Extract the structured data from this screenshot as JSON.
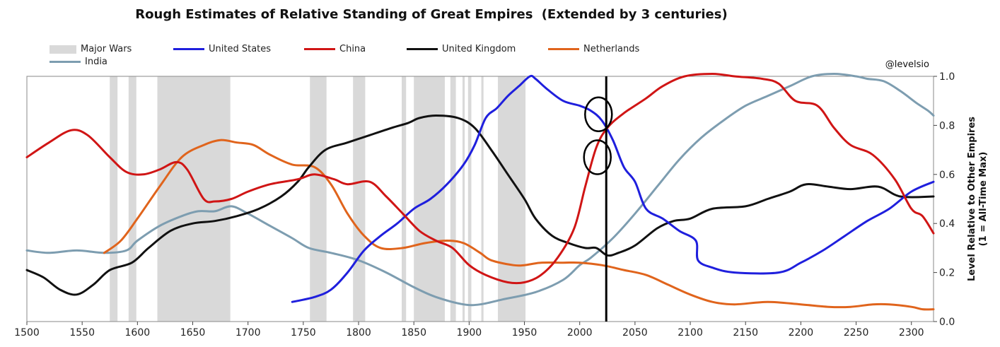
{
  "chart_data": {
    "type": "line",
    "title": "Rough Estimates of Relative Standing of Great Empires",
    "subtitle": "(Extended by 3 centuries)",
    "xlabel": "",
    "ylabel": "Level Relative to Other Empires (1 = All-Time Max)",
    "ylabel_lines": [
      "Level Relative to Other Empires",
      "(1 = All-Time Max)"
    ],
    "credit": "@levelsio",
    "xlim": [
      1500,
      2320
    ],
    "ylim": [
      0,
      1.0
    ],
    "x_ticks": [
      1500,
      1550,
      1600,
      1650,
      1700,
      1750,
      1800,
      1850,
      1900,
      1950,
      2000,
      2050,
      2100,
      2150,
      2200,
      2250,
      2300
    ],
    "y_ticks": [
      {
        "v": 0,
        "label": "0.0"
      },
      {
        "v": 0.2,
        "label": "0.2"
      },
      {
        "v": 0.4,
        "label": "0.4"
      },
      {
        "v": 0.6,
        "label": "0.6"
      },
      {
        "v": 0.8,
        "label": "0.8"
      },
      {
        "v": 1.0,
        "label": "1.0"
      }
    ],
    "legend_position": "top",
    "major_wars_label": "Major Wars",
    "major_wars_color": "#d9d9d9",
    "major_wars": [
      [
        1575,
        1582
      ],
      [
        1592,
        1599
      ],
      [
        1618,
        1684
      ],
      [
        1756,
        1771
      ],
      [
        1795,
        1806
      ],
      [
        1839,
        1843
      ],
      [
        1850,
        1878
      ],
      [
        1883,
        1888
      ],
      [
        1894,
        1896
      ],
      [
        1899,
        1902
      ],
      [
        1911,
        1913
      ],
      [
        1926,
        1951
      ]
    ],
    "present_line_year": 2024,
    "circle_annotations": [
      {
        "x": 2017,
        "y": 0.845
      },
      {
        "x": 2016,
        "y": 0.67
      }
    ],
    "series": [
      {
        "name": "United States",
        "color": "#1f1fdd",
        "points": [
          [
            1740,
            0.08
          ],
          [
            1760,
            0.1
          ],
          [
            1775,
            0.13
          ],
          [
            1790,
            0.2
          ],
          [
            1805,
            0.29
          ],
          [
            1820,
            0.35
          ],
          [
            1835,
            0.4
          ],
          [
            1850,
            0.46
          ],
          [
            1865,
            0.5
          ],
          [
            1880,
            0.56
          ],
          [
            1895,
            0.64
          ],
          [
            1905,
            0.72
          ],
          [
            1915,
            0.83
          ],
          [
            1925,
            0.87
          ],
          [
            1935,
            0.92
          ],
          [
            1945,
            0.96
          ],
          [
            1955,
            1.0
          ],
          [
            1960,
            0.99
          ],
          [
            1970,
            0.95
          ],
          [
            1985,
            0.9
          ],
          [
            2000,
            0.88
          ],
          [
            2010,
            0.86
          ],
          [
            2020,
            0.82
          ],
          [
            2030,
            0.74
          ],
          [
            2040,
            0.63
          ],
          [
            2050,
            0.57
          ],
          [
            2060,
            0.46
          ],
          [
            2075,
            0.42
          ],
          [
            2090,
            0.37
          ],
          [
            2105,
            0.33
          ],
          [
            2107,
            0.25
          ],
          [
            2120,
            0.22
          ],
          [
            2140,
            0.2
          ],
          [
            2180,
            0.2
          ],
          [
            2200,
            0.24
          ],
          [
            2220,
            0.29
          ],
          [
            2240,
            0.35
          ],
          [
            2260,
            0.41
          ],
          [
            2280,
            0.46
          ],
          [
            2300,
            0.53
          ],
          [
            2320,
            0.57
          ]
        ]
      },
      {
        "name": "China",
        "color": "#d01515",
        "points": [
          [
            1500,
            0.67
          ],
          [
            1520,
            0.73
          ],
          [
            1540,
            0.78
          ],
          [
            1555,
            0.76
          ],
          [
            1575,
            0.67
          ],
          [
            1590,
            0.61
          ],
          [
            1605,
            0.6
          ],
          [
            1620,
            0.62
          ],
          [
            1635,
            0.65
          ],
          [
            1645,
            0.62
          ],
          [
            1660,
            0.5
          ],
          [
            1670,
            0.49
          ],
          [
            1685,
            0.5
          ],
          [
            1700,
            0.53
          ],
          [
            1720,
            0.56
          ],
          [
            1745,
            0.58
          ],
          [
            1760,
            0.6
          ],
          [
            1778,
            0.58
          ],
          [
            1790,
            0.56
          ],
          [
            1810,
            0.57
          ],
          [
            1825,
            0.51
          ],
          [
            1840,
            0.44
          ],
          [
            1855,
            0.37
          ],
          [
            1870,
            0.33
          ],
          [
            1885,
            0.3
          ],
          [
            1900,
            0.23
          ],
          [
            1915,
            0.19
          ],
          [
            1935,
            0.16
          ],
          [
            1950,
            0.16
          ],
          [
            1965,
            0.19
          ],
          [
            1980,
            0.26
          ],
          [
            1995,
            0.38
          ],
          [
            2005,
            0.55
          ],
          [
            2015,
            0.71
          ],
          [
            2025,
            0.79
          ],
          [
            2040,
            0.85
          ],
          [
            2060,
            0.91
          ],
          [
            2075,
            0.96
          ],
          [
            2095,
            1.0
          ],
          [
            2120,
            1.01
          ],
          [
            2140,
            1.0
          ],
          [
            2165,
            0.99
          ],
          [
            2180,
            0.97
          ],
          [
            2195,
            0.9
          ],
          [
            2215,
            0.88
          ],
          [
            2230,
            0.79
          ],
          [
            2245,
            0.72
          ],
          [
            2265,
            0.68
          ],
          [
            2285,
            0.58
          ],
          [
            2300,
            0.46
          ],
          [
            2310,
            0.43
          ],
          [
            2320,
            0.36
          ]
        ]
      },
      {
        "name": "United Kingdom",
        "color": "#111111",
        "points": [
          [
            1500,
            0.21
          ],
          [
            1515,
            0.18
          ],
          [
            1530,
            0.13
          ],
          [
            1545,
            0.11
          ],
          [
            1560,
            0.15
          ],
          [
            1575,
            0.21
          ],
          [
            1595,
            0.24
          ],
          [
            1610,
            0.3
          ],
          [
            1630,
            0.37
          ],
          [
            1650,
            0.4
          ],
          [
            1670,
            0.41
          ],
          [
            1690,
            0.43
          ],
          [
            1710,
            0.46
          ],
          [
            1730,
            0.51
          ],
          [
            1745,
            0.57
          ],
          [
            1755,
            0.63
          ],
          [
            1770,
            0.7
          ],
          [
            1790,
            0.73
          ],
          [
            1810,
            0.76
          ],
          [
            1830,
            0.79
          ],
          [
            1845,
            0.81
          ],
          [
            1855,
            0.83
          ],
          [
            1870,
            0.84
          ],
          [
            1890,
            0.83
          ],
          [
            1905,
            0.79
          ],
          [
            1920,
            0.7
          ],
          [
            1935,
            0.6
          ],
          [
            1950,
            0.5
          ],
          [
            1960,
            0.42
          ],
          [
            1975,
            0.35
          ],
          [
            1990,
            0.32
          ],
          [
            2005,
            0.3
          ],
          [
            2015,
            0.3
          ],
          [
            2025,
            0.27
          ],
          [
            2035,
            0.28
          ],
          [
            2050,
            0.31
          ],
          [
            2070,
            0.38
          ],
          [
            2085,
            0.41
          ],
          [
            2100,
            0.42
          ],
          [
            2120,
            0.46
          ],
          [
            2150,
            0.47
          ],
          [
            2170,
            0.5
          ],
          [
            2190,
            0.53
          ],
          [
            2205,
            0.56
          ],
          [
            2225,
            0.55
          ],
          [
            2245,
            0.54
          ],
          [
            2270,
            0.55
          ],
          [
            2290,
            0.51
          ],
          [
            2320,
            0.51
          ]
        ]
      },
      {
        "name": "Netherlands",
        "color": "#e0641c",
        "points": [
          [
            1570,
            0.28
          ],
          [
            1585,
            0.33
          ],
          [
            1600,
            0.42
          ],
          [
            1620,
            0.55
          ],
          [
            1640,
            0.67
          ],
          [
            1660,
            0.72
          ],
          [
            1675,
            0.74
          ],
          [
            1690,
            0.73
          ],
          [
            1705,
            0.72
          ],
          [
            1720,
            0.68
          ],
          [
            1740,
            0.64
          ],
          [
            1760,
            0.63
          ],
          [
            1775,
            0.56
          ],
          [
            1790,
            0.44
          ],
          [
            1805,
            0.35
          ],
          [
            1820,
            0.3
          ],
          [
            1840,
            0.3
          ],
          [
            1860,
            0.32
          ],
          [
            1880,
            0.33
          ],
          [
            1895,
            0.32
          ],
          [
            1910,
            0.28
          ],
          [
            1920,
            0.25
          ],
          [
            1940,
            0.23
          ],
          [
            1950,
            0.23
          ],
          [
            1965,
            0.24
          ],
          [
            1985,
            0.24
          ],
          [
            2000,
            0.24
          ],
          [
            2020,
            0.23
          ],
          [
            2040,
            0.21
          ],
          [
            2060,
            0.19
          ],
          [
            2080,
            0.15
          ],
          [
            2100,
            0.11
          ],
          [
            2120,
            0.08
          ],
          [
            2140,
            0.07
          ],
          [
            2170,
            0.08
          ],
          [
            2200,
            0.07
          ],
          [
            2225,
            0.06
          ],
          [
            2245,
            0.06
          ],
          [
            2265,
            0.07
          ],
          [
            2280,
            0.07
          ],
          [
            2300,
            0.06
          ],
          [
            2310,
            0.05
          ],
          [
            2320,
            0.05
          ]
        ]
      },
      {
        "name": "India",
        "color": "#7d9db0",
        "points": [
          [
            1500,
            0.29
          ],
          [
            1520,
            0.28
          ],
          [
            1545,
            0.29
          ],
          [
            1570,
            0.28
          ],
          [
            1590,
            0.29
          ],
          [
            1600,
            0.33
          ],
          [
            1620,
            0.39
          ],
          [
            1640,
            0.43
          ],
          [
            1655,
            0.45
          ],
          [
            1670,
            0.45
          ],
          [
            1685,
            0.47
          ],
          [
            1700,
            0.44
          ],
          [
            1720,
            0.39
          ],
          [
            1740,
            0.34
          ],
          [
            1755,
            0.3
          ],
          [
            1775,
            0.28
          ],
          [
            1800,
            0.25
          ],
          [
            1825,
            0.2
          ],
          [
            1850,
            0.14
          ],
          [
            1870,
            0.1
          ],
          [
            1895,
            0.07
          ],
          [
            1910,
            0.07
          ],
          [
            1930,
            0.09
          ],
          [
            1960,
            0.12
          ],
          [
            1985,
            0.17
          ],
          [
            2000,
            0.23
          ],
          [
            2010,
            0.26
          ],
          [
            2030,
            0.34
          ],
          [
            2050,
            0.44
          ],
          [
            2070,
            0.55
          ],
          [
            2090,
            0.66
          ],
          [
            2110,
            0.75
          ],
          [
            2130,
            0.82
          ],
          [
            2150,
            0.88
          ],
          [
            2170,
            0.92
          ],
          [
            2190,
            0.96
          ],
          [
            2210,
            1.0
          ],
          [
            2230,
            1.01
          ],
          [
            2250,
            1.0
          ],
          [
            2260,
            0.99
          ],
          [
            2275,
            0.98
          ],
          [
            2290,
            0.94
          ],
          [
            2305,
            0.89
          ],
          [
            2315,
            0.86
          ],
          [
            2320,
            0.84
          ]
        ]
      }
    ]
  }
}
